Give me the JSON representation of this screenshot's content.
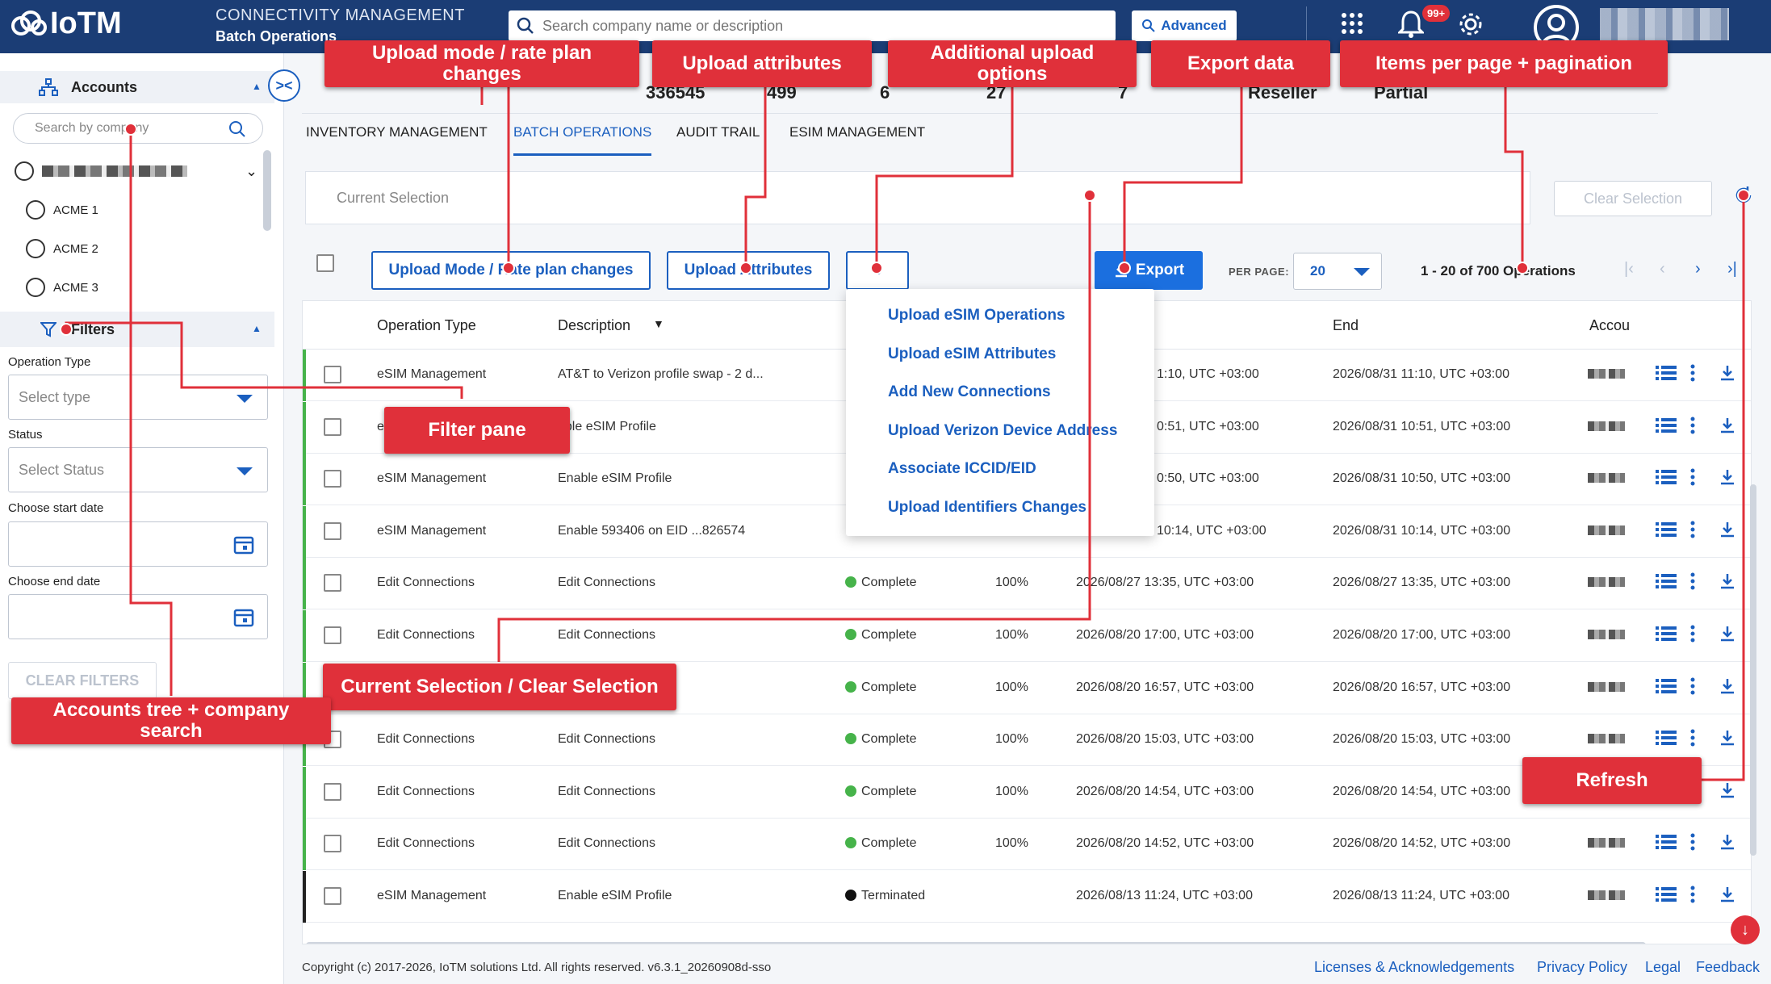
{
  "header": {
    "logo_text": "IoTM",
    "title": "CONNECTIVITY MANAGEMENT",
    "subtitle": "Batch Operations",
    "search_placeholder": "Search company name or description",
    "advanced_label": "Advanced",
    "notification_badge": "99+",
    "icons": [
      "apps-grid-icon",
      "bell-icon",
      "gear-icon",
      "user-avatar-icon"
    ]
  },
  "sidebar": {
    "accounts_label": "Accounts",
    "search_placeholder": "Search by company",
    "tree": [
      "ACME 1",
      "ACME 2",
      "ACME 3"
    ],
    "filters_label": "Filters",
    "operation_type_label": "Operation Type",
    "operation_type_placeholder": "Select type",
    "status_label": "Status",
    "status_placeholder": "Select Status",
    "start_date_label": "Choose start date",
    "end_date_label": "Choose end date",
    "clear_filters_label": "CLEAR FILTERS"
  },
  "stats": {
    "v1": "336545",
    "v2": "499",
    "v3": "6",
    "v4": "27",
    "v5": "7",
    "v6": "Reseller",
    "v7": "Partial"
  },
  "tabs": [
    "INVENTORY MANAGEMENT",
    "BATCH OPERATIONS",
    "AUDIT TRAIL",
    "ESIM MANAGEMENT"
  ],
  "selection": {
    "current_label": "Current Selection",
    "clear_label": "Clear Selection"
  },
  "toolbar": {
    "upload_mode_label": "Upload Mode / Rate plan changes",
    "upload_attributes_label": "Upload Attributes",
    "export_label": "Export",
    "per_page_label": "PER PAGE:",
    "per_page_value": "20",
    "range_label": "1 - 20 of 700 Operations"
  },
  "dropdown": [
    "Upload eSIM Operations",
    "Upload eSIM Attributes",
    "Add New Connections",
    "Upload Verizon Device Address",
    "Associate ICCID/EID",
    "Upload Identifiers Changes"
  ],
  "table": {
    "columns": [
      "Operation Type",
      "Description",
      "End",
      "Accou"
    ],
    "rows": [
      {
        "type": "eSIM Management",
        "desc": "AT&T to Verizon profile swap - 2 d...",
        "status": "",
        "pct": "",
        "start": "1:10, UTC +03:00",
        "end": "2026/08/31 11:10, UTC +03:00"
      },
      {
        "type": "eSIM Management",
        "desc": "able eSIM Profile",
        "status": "",
        "pct": "",
        "start": "0:51, UTC +03:00",
        "end": "2026/08/31 10:51, UTC +03:00"
      },
      {
        "type": "eSIM Management",
        "desc": "Enable eSIM Profile",
        "status": "",
        "pct": "",
        "start": "0:50, UTC +03:00",
        "end": "2026/08/31 10:50, UTC +03:00"
      },
      {
        "type": "eSIM Management",
        "desc": "Enable 593406 on EID ...826574",
        "status": "",
        "pct": "",
        "start": "10:14, UTC +03:00",
        "end": "2026/08/31 10:14, UTC +03:00"
      },
      {
        "type": "Edit Connections",
        "desc": "Edit Connections",
        "status": "Complete",
        "pct": "100%",
        "start": "2026/08/27 13:35, UTC +03:00",
        "end": "2026/08/27 13:35, UTC +03:00"
      },
      {
        "type": "Edit Connections",
        "desc": "Edit Connections",
        "status": "Complete",
        "pct": "100%",
        "start": "2026/08/20 17:00, UTC +03:00",
        "end": "2026/08/20 17:00, UTC +03:00"
      },
      {
        "type": "",
        "desc": "",
        "status": "Complete",
        "pct": "100%",
        "start": "2026/08/20 16:57, UTC +03:00",
        "end": "2026/08/20 16:57, UTC +03:00"
      },
      {
        "type": "Edit Connections",
        "desc": "Edit Connections",
        "status": "Complete",
        "pct": "100%",
        "start": "2026/08/20 15:03, UTC +03:00",
        "end": "2026/08/20 15:03, UTC +03:00"
      },
      {
        "type": "Edit Connections",
        "desc": "Edit Connections",
        "status": "Complete",
        "pct": "100%",
        "start": "2026/08/20 14:54, UTC +03:00",
        "end": "2026/08/20 14:54, UTC +03:00"
      },
      {
        "type": "Edit Connections",
        "desc": "Edit Connections",
        "status": "Complete",
        "pct": "100%",
        "start": "2026/08/20 14:52, UTC +03:00",
        "end": "2026/08/20 14:52, UTC +03:00"
      },
      {
        "type": "eSIM Management",
        "desc": "Enable eSIM Profile",
        "status": "Terminated",
        "pct": "",
        "start": "2026/08/13 11:24, UTC +03:00",
        "end": "2026/08/13 11:24, UTC +03:00"
      }
    ]
  },
  "footer": {
    "copyright": "Copyright (c) 2017-2026, IoTM solutions Ltd. All rights reserved. v6.3.1_20260908d-sso",
    "links": [
      "Licenses & Acknowledgements",
      "Privacy Policy",
      "Legal",
      "Feedback"
    ]
  },
  "callouts": {
    "upload_mode": "Upload mode / rate plan changes",
    "upload_attributes": "Upload attributes",
    "additional_upload": "Additional upload options",
    "export_data": "Export data",
    "pagination": "Items per page + pagination",
    "filter_pane": "Filter pane",
    "current_selection": "Current Selection / Clear Selection",
    "accounts_tree": "Accounts tree + company search",
    "refresh": "Refresh"
  },
  "colors": {
    "header_bg": "#1b3d75",
    "accent": "#1b5fbf",
    "callout": "#e0303a",
    "complete": "#46b34a"
  }
}
